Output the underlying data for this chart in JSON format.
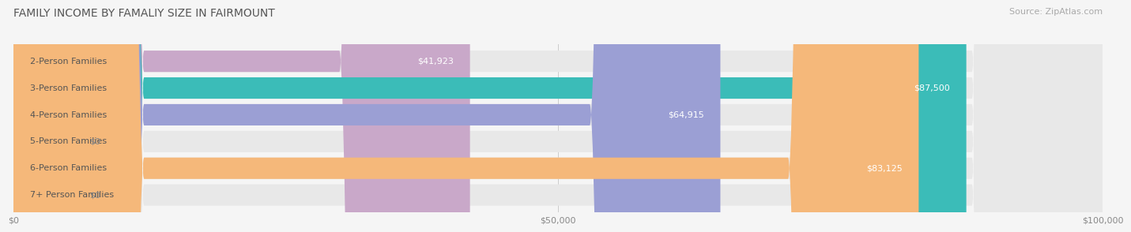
{
  "title": "FAMILY INCOME BY FAMALIY SIZE IN FAIRMOUNT",
  "source": "Source: ZipAtlas.com",
  "categories": [
    "2-Person Families",
    "3-Person Families",
    "4-Person Families",
    "5-Person Families",
    "6-Person Families",
    "7+ Person Families"
  ],
  "values": [
    41923,
    87500,
    64915,
    0,
    83125,
    0
  ],
  "bar_colors": [
    "#c9a8c9",
    "#3bbcb8",
    "#9b9fd4",
    "#f4a0b0",
    "#f5b87a",
    "#f4a0b0"
  ],
  "value_labels": [
    "$41,923",
    "$87,500",
    "$64,915",
    "$0",
    "$83,125",
    "$0"
  ],
  "xlim": [
    0,
    100000
  ],
  "xticks": [
    0,
    50000,
    100000
  ],
  "xticklabels": [
    "$0",
    "$50,000",
    "$100,000"
  ],
  "bg_color": "#f5f5f5",
  "bar_bg_color": "#e8e8e8",
  "bar_height": 0.62,
  "title_fontsize": 10,
  "source_fontsize": 8,
  "label_fontsize": 8,
  "value_fontsize": 8
}
